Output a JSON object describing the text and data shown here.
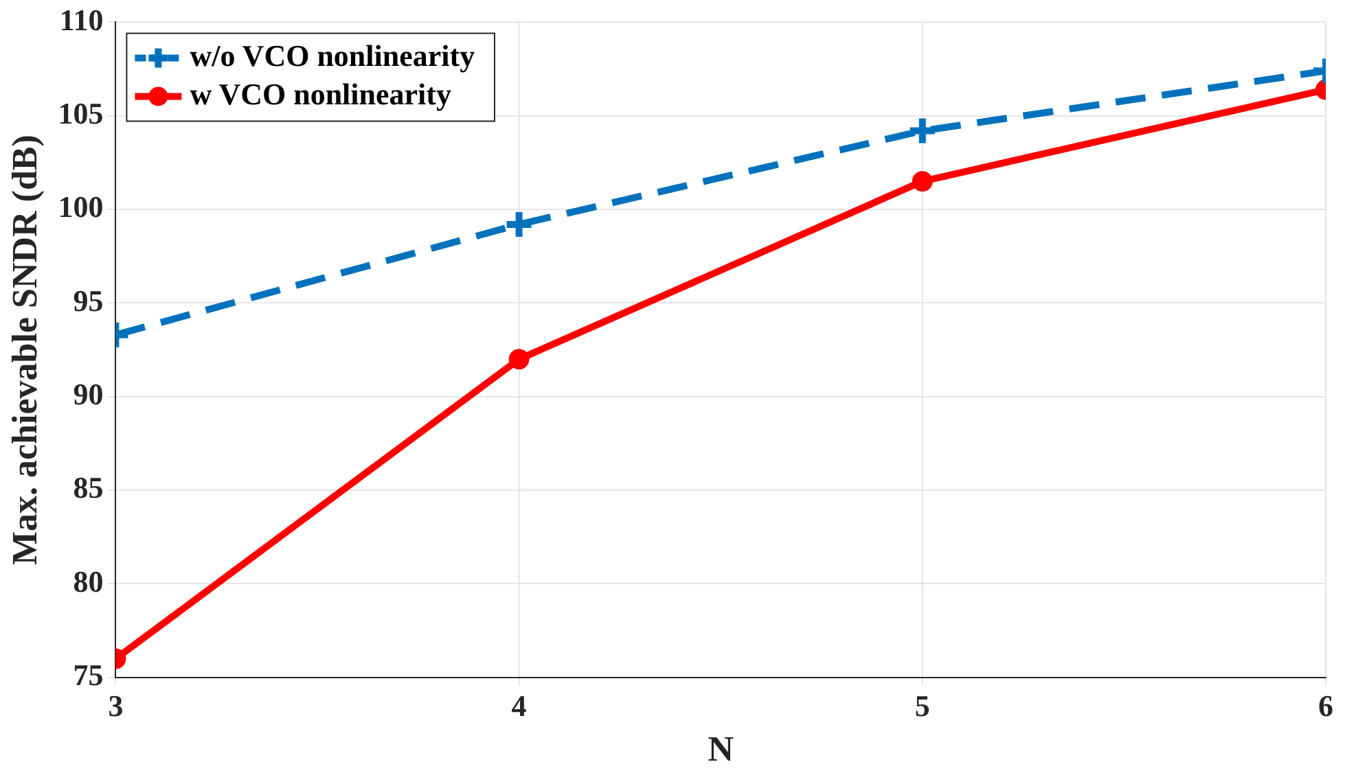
{
  "chart_data": {
    "type": "line",
    "xlabel": "N",
    "ylabel": "Max. achievable SNDR (dB)",
    "x": [
      3,
      4,
      5,
      6
    ],
    "series": [
      {
        "name": "w/o VCO nonlinearity",
        "color": "#0072bd",
        "values": [
          93.3,
          99.2,
          104.2,
          107.4
        ],
        "marker": "cross",
        "line_style": "dashed"
      },
      {
        "name": "w VCO nonlinearity",
        "color": "#ff0000",
        "values": [
          76,
          92,
          101.5,
          106.4
        ],
        "marker": "circle",
        "line_style": "solid"
      }
    ],
    "xlim": [
      3,
      6
    ],
    "xticks": [
      3,
      4,
      5,
      6
    ],
    "ylim": [
      75,
      110
    ],
    "yticks": [
      75,
      80,
      85,
      90,
      95,
      100,
      105,
      110
    ],
    "grid": true,
    "legend": "top left"
  }
}
